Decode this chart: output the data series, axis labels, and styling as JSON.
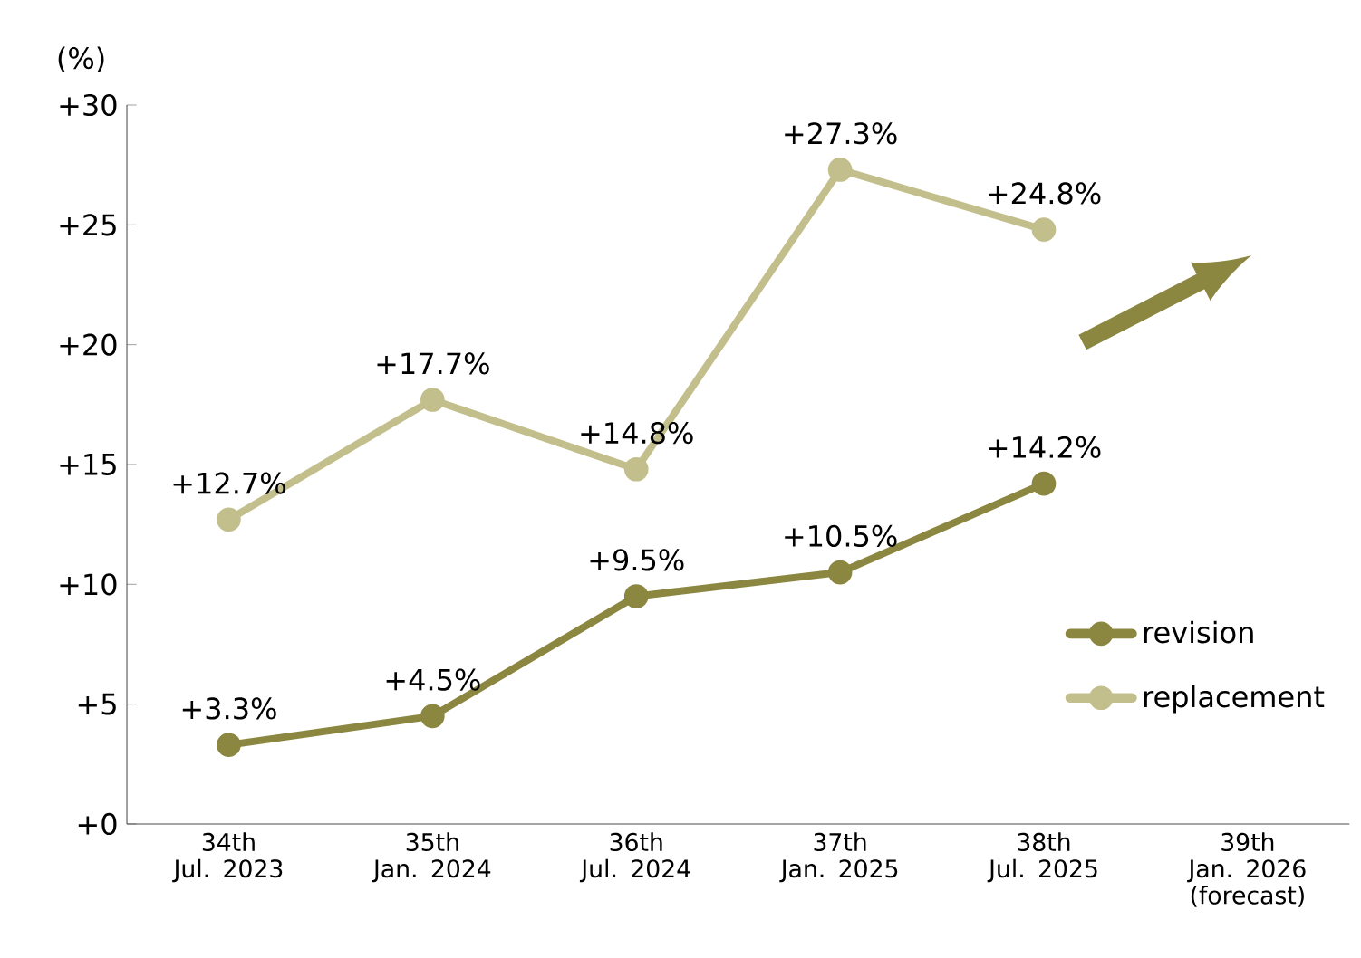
{
  "chart_data": {
    "type": "line",
    "ylabel": "(%)",
    "categories": [
      "34th\nJul. 2023",
      "35th\nJan. 2024",
      "36th\nJul. 2024",
      "37th\nJan. 2025",
      "38th\nJul. 2025",
      "39th\nJan. 2026\n(forecast)"
    ],
    "series": [
      {
        "name": "revision",
        "color": "#8b8740",
        "values": [
          3.3,
          4.5,
          9.5,
          10.5,
          14.2,
          null
        ],
        "value_labels": [
          "+3.3%",
          "+4.5%",
          "+9.5%",
          "+10.5%",
          "+14.2%",
          null
        ]
      },
      {
        "name": "replacement",
        "color": "#c3bf8c",
        "values": [
          12.7,
          17.7,
          14.8,
          27.3,
          24.8,
          null
        ],
        "value_labels": [
          "+12.7%",
          "+17.7%",
          "+14.8%",
          "+27.3%",
          "+24.8%",
          null
        ]
      }
    ],
    "ylim": [
      0,
      30
    ],
    "yticks": [
      {
        "value": 0,
        "label": "+0"
      },
      {
        "value": 5,
        "label": "+5"
      },
      {
        "value": 10,
        "label": "+10"
      },
      {
        "value": 15,
        "label": "+15"
      },
      {
        "value": 20,
        "label": "+20"
      },
      {
        "value": 25,
        "label": "+25"
      },
      {
        "value": 30,
        "label": "+30"
      }
    ],
    "grid": false,
    "legend": "right",
    "marker": "circle",
    "line_style": "solid"
  }
}
